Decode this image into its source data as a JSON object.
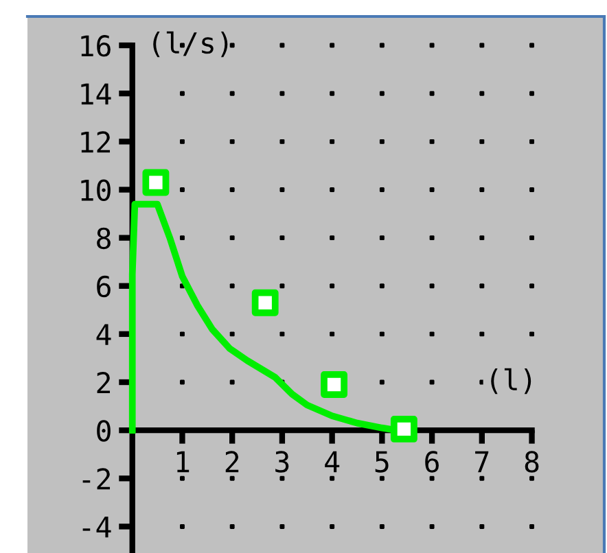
{
  "chart_data": {
    "type": "line",
    "xlabel": "(l)",
    "ylabel": "(l/s)",
    "xlim": [
      -2.1,
      9.45
    ],
    "ylim": [
      -5.1,
      17.2
    ],
    "xticks": [
      1,
      2,
      3,
      4,
      5,
      6,
      7,
      8
    ],
    "yticks": [
      -4,
      -2,
      0,
      2,
      4,
      6,
      8,
      10,
      12,
      14,
      16
    ],
    "grid": true,
    "legend": false,
    "series": [
      {
        "color": "#00ee00",
        "marker": "none",
        "line_style": "solid",
        "x": [
          0,
          0,
          0.05,
          0.5,
          0.75,
          1.0,
          1.3,
          1.6,
          1.95,
          2.3,
          2.86,
          3.2,
          3.5,
          4.0,
          4.5,
          5.0,
          5.3
        ],
        "values": [
          0,
          6.5,
          9.4,
          9.4,
          8.0,
          6.4,
          5.2,
          4.2,
          3.4,
          2.9,
          2.2,
          1.5,
          1.05,
          0.6,
          0.3,
          0.1,
          0
        ]
      },
      {
        "type": "scatter",
        "color": "#00ee00",
        "marker": "square",
        "x": [
          0.47,
          2.66,
          4.04,
          5.44
        ],
        "values": [
          10.3,
          5.3,
          1.9,
          0.05
        ]
      }
    ]
  }
}
